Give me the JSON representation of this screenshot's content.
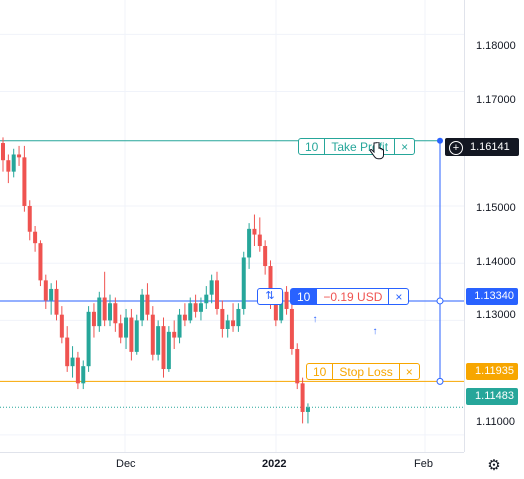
{
  "colors": {
    "up": "#26a69a",
    "down": "#ef5350",
    "take_profit": "#26a69a",
    "stop_loss": "#f7a600",
    "position": "#2962ff",
    "last_price": "#26a69a"
  },
  "axis": {
    "y_ticks": [
      "1.18000",
      "1.17000",
      "1.15000",
      "1.14000",
      "1.13000",
      "1.11000"
    ],
    "x_ticks": [
      {
        "label": "Dec",
        "bold": false
      },
      {
        "label": "2022",
        "bold": true
      },
      {
        "label": "Feb",
        "bold": false
      }
    ]
  },
  "badges": {
    "take_profit_price": "1.16141",
    "position_price": "1.13340",
    "stop_loss_price": "1.11935",
    "last_price": "1.11483"
  },
  "orders": {
    "take_profit": {
      "qty": "10",
      "label": "Take Profit",
      "close": "×"
    },
    "position": {
      "qty": "10",
      "label": "−0.19 USD",
      "close": "×",
      "swap_icon": "⇅"
    },
    "stop_loss": {
      "qty": "10",
      "label": "Stop Loss",
      "close": "×"
    }
  },
  "icons": {
    "settings": "gear-icon",
    "crosshair_add": "plus-circle-icon",
    "cursor": "hand-pointer-icon"
  },
  "chart_data": {
    "type": "candlestick",
    "y_range": [
      1.107,
      1.186
    ],
    "levels": {
      "take_profit": 1.16141,
      "position": 1.1334,
      "stop_loss": 1.11935,
      "last_price": 1.11483
    },
    "candles": [
      [
        1.161,
        1.162,
        1.156,
        1.158
      ],
      [
        1.158,
        1.159,
        1.154,
        1.156
      ],
      [
        1.156,
        1.16,
        1.155,
        1.159
      ],
      [
        1.159,
        1.1605,
        1.157,
        1.1585
      ],
      [
        1.1585,
        1.1605,
        1.149,
        1.15
      ],
      [
        1.15,
        1.151,
        1.144,
        1.1455
      ],
      [
        1.1455,
        1.1465,
        1.142,
        1.1435
      ],
      [
        1.1435,
        1.144,
        1.136,
        1.137
      ],
      [
        1.137,
        1.138,
        1.132,
        1.1335
      ],
      [
        1.1335,
        1.1365,
        1.131,
        1.1355
      ],
      [
        1.1355,
        1.137,
        1.13,
        1.131
      ],
      [
        1.131,
        1.1325,
        1.126,
        1.127
      ],
      [
        1.127,
        1.129,
        1.121,
        1.122
      ],
      [
        1.122,
        1.1255,
        1.12,
        1.1235
      ],
      [
        1.1235,
        1.1245,
        1.118,
        1.119
      ],
      [
        1.119,
        1.123,
        1.118,
        1.122
      ],
      [
        1.122,
        1.1325,
        1.121,
        1.1315
      ],
      [
        1.1315,
        1.133,
        1.127,
        1.129
      ],
      [
        1.129,
        1.135,
        1.128,
        1.134
      ],
      [
        1.134,
        1.1385,
        1.129,
        1.13
      ],
      [
        1.13,
        1.1345,
        1.129,
        1.133
      ],
      [
        1.133,
        1.134,
        1.128,
        1.1295
      ],
      [
        1.1295,
        1.131,
        1.126,
        1.127
      ],
      [
        1.127,
        1.132,
        1.125,
        1.1305
      ],
      [
        1.1305,
        1.132,
        1.123,
        1.1245
      ],
      [
        1.1245,
        1.131,
        1.124,
        1.13
      ],
      [
        1.13,
        1.1355,
        1.129,
        1.1345
      ],
      [
        1.1345,
        1.1365,
        1.13,
        1.131
      ],
      [
        1.131,
        1.1325,
        1.123,
        1.124
      ],
      [
        1.124,
        1.13,
        1.123,
        1.129
      ],
      [
        1.129,
        1.1305,
        1.12,
        1.1215
      ],
      [
        1.1215,
        1.129,
        1.121,
        1.128
      ],
      [
        1.128,
        1.13,
        1.125,
        1.127
      ],
      [
        1.127,
        1.132,
        1.126,
        1.131
      ],
      [
        1.131,
        1.133,
        1.129,
        1.13
      ],
      [
        1.13,
        1.134,
        1.1295,
        1.133
      ],
      [
        1.133,
        1.1345,
        1.1305,
        1.1315
      ],
      [
        1.1315,
        1.134,
        1.13,
        1.133
      ],
      [
        1.133,
        1.136,
        1.132,
        1.1345
      ],
      [
        1.1345,
        1.138,
        1.133,
        1.137
      ],
      [
        1.137,
        1.1385,
        1.131,
        1.132
      ],
      [
        1.132,
        1.1335,
        1.127,
        1.1285
      ],
      [
        1.1285,
        1.131,
        1.127,
        1.13
      ],
      [
        1.13,
        1.133,
        1.128,
        1.129
      ],
      [
        1.129,
        1.133,
        1.128,
        1.132
      ],
      [
        1.132,
        1.142,
        1.131,
        1.141
      ],
      [
        1.141,
        1.147,
        1.139,
        1.146
      ],
      [
        1.146,
        1.1485,
        1.143,
        1.145
      ],
      [
        1.145,
        1.148,
        1.142,
        1.143
      ],
      [
        1.143,
        1.144,
        1.138,
        1.1395
      ],
      [
        1.1395,
        1.1405,
        1.132,
        1.133
      ],
      [
        1.133,
        1.135,
        1.129,
        1.13
      ],
      [
        1.13,
        1.1355,
        1.1295,
        1.135
      ],
      [
        1.135,
        1.136,
        1.131,
        1.132
      ],
      [
        1.132,
        1.133,
        1.124,
        1.125
      ],
      [
        1.125,
        1.126,
        1.118,
        1.119
      ],
      [
        1.119,
        1.12,
        1.112,
        1.114
      ],
      [
        1.114,
        1.1155,
        1.112,
        1.1148
      ]
    ]
  }
}
